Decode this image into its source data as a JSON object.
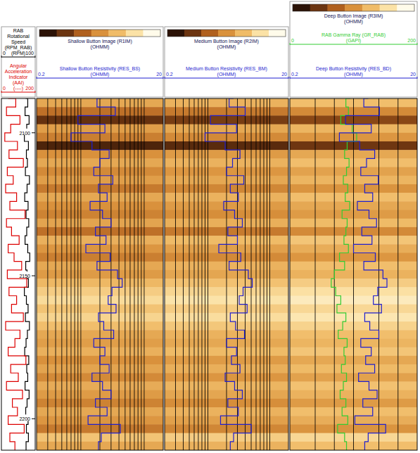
{
  "chart_data": {
    "type": "well_log",
    "depth": [
      2088,
      2091,
      2094,
      2097,
      2100,
      2103,
      2106,
      2109,
      2112,
      2115,
      2118,
      2121,
      2124,
      2127,
      2130,
      2133,
      2136,
      2139,
      2142,
      2145,
      2148,
      2151,
      2154,
      2157,
      2160,
      2163,
      2166,
      2169,
      2172,
      2175,
      2178,
      2181,
      2184,
      2187,
      2190,
      2193,
      2196,
      2199,
      2202,
      2205,
      2208,
      2211
    ],
    "ylim": [
      2088,
      2211
    ],
    "yticks": [
      2100,
      2150,
      2200
    ],
    "image_clim": [
      0.2,
      20
    ],
    "image_colors": [
      "#2b1206",
      "#6b3410",
      "#b0601e",
      "#d9913c",
      "#f0bc68",
      "#fbe2a6",
      "#fffbea"
    ],
    "tracks": [
      {
        "series": [
          {
            "name": "RAB Rotational Speed (RPM_RAB)",
            "unit": "(RPM)",
            "color": "#000000",
            "xlim": [
              0,
              100
            ],
            "xticks": [
              0,
              100
            ],
            "values": [
              72,
              78,
              70,
              82,
              75,
              68,
              80,
              74,
              77,
              71,
              83,
              76,
              69,
              79,
              73,
              81,
              75,
              70,
              78,
              84,
              72,
              76,
              80,
              68,
              74,
              79,
              71,
              83,
              77,
              73,
              69,
              81,
              75,
              78,
              70,
              82,
              76,
              72,
              79,
              74,
              80,
              73
            ]
          },
          {
            "name": "Angular Acceleration Indicator (AAI)",
            "unit": "(----)",
            "color": "#dd0000",
            "xlim": [
              0,
              200
            ],
            "xticks": [
              0,
              200
            ],
            "values": [
              40,
              85,
              30,
              110,
              55,
              20,
              95,
              45,
              130,
              35,
              70,
              25,
              90,
              50,
              140,
              30,
              60,
              105,
              40,
              75,
              120,
              35,
              150,
              45,
              90,
              60,
              130,
              25,
              110,
              80,
              40,
              145,
              55,
              100,
              30,
              125,
              65,
              95,
              40,
              135,
              50,
              80
            ]
          }
        ]
      },
      {
        "image": {
          "name": "Shallow Button Image (R1IM)",
          "unit": "(OHMM)",
          "values": [
            3,
            1.2,
            0.4,
            2.5,
            1.5,
            0.3,
            2,
            3,
            1.8,
            2.5,
            1.4,
            3,
            2,
            1.6,
            2.8,
            1.2,
            3.5,
            2.2,
            1.5,
            3,
            2.4,
            4,
            6,
            8,
            5,
            7,
            4.5,
            3,
            2.5,
            3.5,
            2,
            2.8,
            1.8,
            3.2,
            2.4,
            1.6,
            3,
            2.2,
            1.4,
            5,
            3,
            2
          ]
        },
        "gridlines": [
          0.3,
          0.4,
          0.5,
          0.6,
          0.7,
          0.8,
          0.9,
          1,
          2,
          3,
          4,
          5,
          6,
          7,
          8,
          9,
          10
        ],
        "series": [
          {
            "name": "Shallow Button Resistivity (RES_BS)",
            "unit": "(OHMM)",
            "color": "#1f1fd0",
            "log": "x",
            "xlim": [
              0.2,
              20
            ],
            "xticks": [
              0.2,
              20
            ],
            "values": [
              2.1,
              1.8,
              3.5,
              0.9,
              2.4,
              0.7,
              1.5,
              2.8,
              2.0,
              1.6,
              3.2,
              1.9,
              2.6,
              1.4,
              2.2,
              3.0,
              1.7,
              2.5,
              1.2,
              2.9,
              1.8,
              3.8,
              4.5,
              3.1,
              2.7,
              3.6,
              1.9,
              2.3,
              3.3,
              1.6,
              2.4,
              2.0,
              2.8,
              1.5,
              2.2,
              3.0,
              1.7,
              2.6,
              1.3,
              4.2,
              2.1,
              1.9
            ]
          }
        ]
      },
      {
        "image": {
          "name": "Medium Button Image (R2IM)",
          "unit": "(OHMM)",
          "values": [
            3.6,
            1.4,
            0.5,
            3,
            1.8,
            0.35,
            2.4,
            3.6,
            2.2,
            3,
            1.7,
            3.6,
            2.4,
            1.9,
            3.4,
            1.4,
            4.2,
            2.6,
            1.8,
            3.6,
            2.9,
            4.8,
            7.2,
            9.6,
            6,
            8.4,
            5.4,
            3.6,
            3,
            4.2,
            2.4,
            3.4,
            2.2,
            3.8,
            2.9,
            1.9,
            3.6,
            2.6,
            1.7,
            6,
            3.6,
            2.4
          ]
        },
        "gridlines": [
          0.3,
          0.4,
          0.5,
          0.6,
          0.7,
          0.8,
          0.9,
          1,
          2,
          3,
          4,
          5,
          6,
          7,
          8,
          9,
          10
        ],
        "series": [
          {
            "name": "Medium Button Resistivity (RES_BM)",
            "unit": "(OHMM)",
            "color": "#1f1fd0",
            "log": "x",
            "xlim": [
              0.2,
              20
            ],
            "xticks": [
              0.2,
              20
            ],
            "values": [
              2.6,
              2.2,
              4.0,
              1.1,
              2.9,
              0.9,
              1.9,
              3.3,
              2.5,
              2.0,
              3.8,
              2.3,
              3.1,
              1.8,
              2.7,
              3.6,
              2.1,
              3.0,
              1.5,
              3.4,
              2.2,
              4.5,
              5.2,
              3.7,
              3.2,
              4.3,
              2.3,
              2.8,
              3.9,
              2.0,
              2.9,
              2.4,
              3.3,
              1.9,
              2.7,
              3.6,
              2.1,
              3.1,
              1.6,
              5.0,
              2.6,
              2.3
            ]
          }
        ]
      },
      {
        "image": {
          "name": "Deep Button Image (R3IM)",
          "unit": "(OHMM)",
          "values": [
            4.5,
            1.8,
            0.6,
            3.8,
            2.2,
            0.45,
            3,
            4.5,
            2.7,
            3.8,
            2.1,
            4.5,
            3,
            2.4,
            4.2,
            1.8,
            5.2,
            3.3,
            2.2,
            4.5,
            3.6,
            6,
            9,
            12,
            7.5,
            10.5,
            6.8,
            4.5,
            3.8,
            5.2,
            3,
            4.2,
            2.7,
            4.8,
            3.6,
            2.4,
            4.5,
            3.3,
            2.1,
            7.5,
            4.5,
            3
          ]
        },
        "gridlines": [
          0.5,
          1,
          2,
          5,
          10
        ],
        "series": [
          {
            "name": "RAB Gamma Ray (GR_RAB)",
            "unit": "(GAPI)",
            "color": "#33cc33",
            "xlim": [
              0,
              200
            ],
            "xticks": [
              0,
              200
            ],
            "values": [
              95,
              88,
              92,
              80,
              98,
              105,
              90,
              86,
              93,
              89,
              84,
              91,
              87,
              94,
              82,
              90,
              88,
              85,
              92,
              78,
              86,
              70,
              65,
              72,
              80,
              74,
              88,
              83,
              76,
              90,
              85,
              87,
              81,
              89,
              84,
              79,
              88,
              82,
              91,
              75,
              86,
              89
            ]
          },
          {
            "name": "Deep Button Resistivity (RES_BD)",
            "unit": "(OHMM)",
            "color": "#1f1fd0",
            "log": "x",
            "xlim": [
              0.2,
              20
            ],
            "xticks": [
              0.2,
              20
            ],
            "values": [
              3.4,
              2.9,
              5.1,
              1.5,
              3.8,
              1.2,
              2.5,
              4.3,
              3.2,
              2.6,
              4.9,
              3.0,
              4.0,
              2.3,
              3.5,
              4.6,
              2.7,
              3.9,
              2.0,
              4.4,
              2.9,
              5.8,
              6.7,
              4.8,
              4.1,
              5.5,
              3.0,
              3.6,
              5.0,
              2.6,
              3.8,
              3.1,
              4.3,
              2.4,
              3.5,
              4.7,
              2.8,
              4.0,
              2.1,
              6.4,
              3.4,
              3.0
            ]
          }
        ]
      }
    ]
  }
}
